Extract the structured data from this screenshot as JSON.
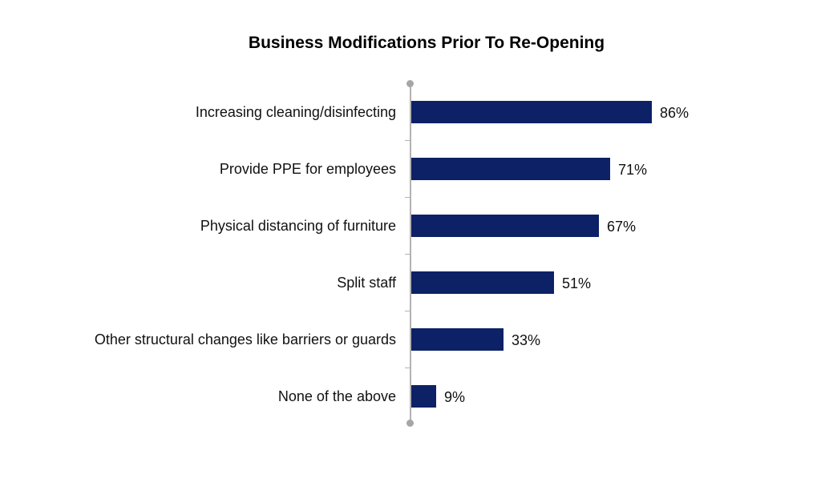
{
  "chart_data": {
    "type": "bar",
    "orientation": "horizontal",
    "title": "Business Modifications Prior To Re-Opening",
    "xlabel": "",
    "ylabel": "",
    "categories": [
      "Increasing cleaning/disinfecting",
      "Provide PPE for employees",
      "Physical distancing of furniture",
      "Split staff",
      "Other structural changes like barriers or guards",
      "None of the above"
    ],
    "values": [
      86,
      71,
      67,
      51,
      33,
      9
    ],
    "value_labels": [
      "86%",
      "71%",
      "67%",
      "51%",
      "33%",
      "9%"
    ],
    "xlim": [
      0,
      100
    ],
    "grid": false,
    "legend": null,
    "bar_color": "#0d2167"
  },
  "title": "Business Modifications Prior To Re-Opening",
  "rows": [
    {
      "label": "Increasing cleaning/disinfecting",
      "value_label": "86%"
    },
    {
      "label": "Provide PPE for employees",
      "value_label": "71%"
    },
    {
      "label": "Physical distancing of furniture",
      "value_label": "67%"
    },
    {
      "label": "Split staff",
      "value_label": "51%"
    },
    {
      "label": "Other structural changes like barriers or guards",
      "value_label": "33%"
    },
    {
      "label": "None of the above",
      "value_label": "9%"
    }
  ]
}
